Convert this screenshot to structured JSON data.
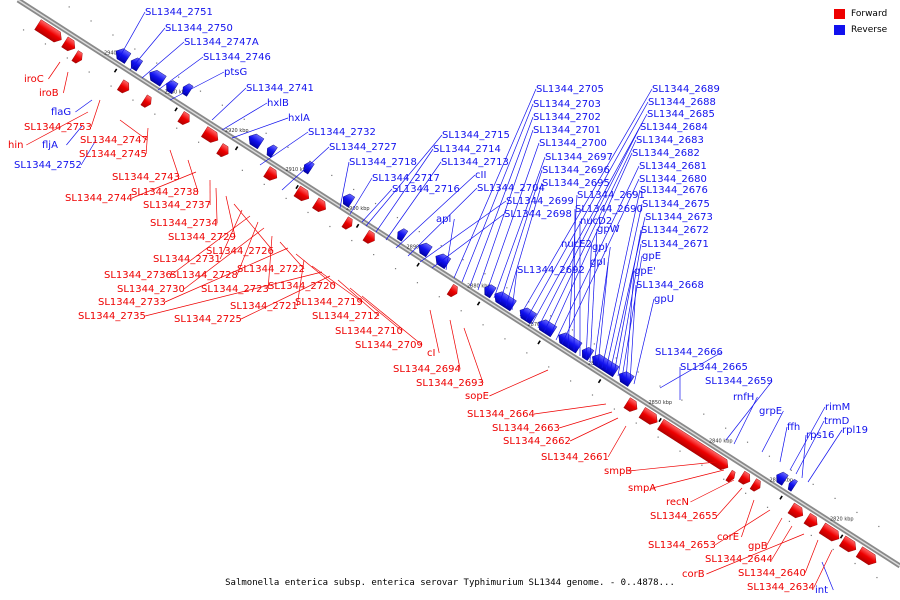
{
  "legend": {
    "forward_label": "Forward",
    "reverse_label": "Reverse",
    "forward_color": "#ee0000",
    "reverse_color": "#1111ee"
  },
  "caption": "Salmonella enterica subsp. enterica serovar Typhimurium SL1344 genome. - 0..4878...",
  "ticks": [
    "2940 kbp",
    "2930 kbp",
    "2920 kbp",
    "2910 kbp",
    "2900 kbp",
    "2890 kbp",
    "2880 kbp",
    "2870 kbp",
    "2860 kbp",
    "2850 kbp",
    "2840 kbp",
    "2830 kbp",
    "2820 kbp"
  ],
  "reverse_labels": [
    "SL1344_2751",
    "SL1344_2750",
    "SL1344_2747A",
    "SL1344_2746",
    "ptsG",
    "SL1344_2741",
    "hxlB",
    "hxlA",
    "SL1344_2732",
    "SL1344_2727",
    "SL1344_2718",
    "SL1344_2717",
    "SL1344_2716",
    "SL1344_2715",
    "SL1344_2714",
    "SL1344_2713",
    "cII",
    "SL1344_2704",
    "SL1344_2699",
    "SL1344_2698",
    "apl",
    "SL1344_2705",
    "SL1344_2703",
    "SL1344_2702",
    "SL1344_2701",
    "SL1344_2700",
    "SL1344_2697",
    "SL1344_2696",
    "SL1344_2695",
    "SL1344_2692",
    "SL1344_2689",
    "SL1344_2688",
    "SL1344_2685",
    "SL1344_2684",
    "SL1344_2683",
    "SL1344_2682",
    "SL1344_2681",
    "SL1344_2680",
    "SL1344_2691",
    "SL1344_2690",
    "nucD2",
    "nucE2",
    "gpW",
    "gpJ",
    "gpI",
    "SL1344_2676",
    "SL1344_2675",
    "SL1344_2673",
    "SL1344_2672",
    "SL1344_2671",
    "gpE",
    "gpE'",
    "SL1344_2668",
    "gpU",
    "SL1344_2666",
    "SL1344_2665",
    "SL1344_2659",
    "rnfH",
    "grpE",
    "ffh",
    "rimM",
    "trmD",
    "rps16",
    "rpl19",
    "flaG",
    "fljA",
    "SL1344_2752",
    "int"
  ],
  "forward_labels": [
    "iroC",
    "iroB",
    "SL1344_2753",
    "hin",
    "SL1344_2747",
    "SL1344_2745",
    "SL1344_2743",
    "SL1344_2738",
    "SL1344_2744",
    "SL1344_2737",
    "SL1344_2734",
    "SL1344_2729",
    "SL1344_2726",
    "SL1344_2731",
    "SL1344_2736",
    "SL1344_2728",
    "SL1344_2730",
    "SL1344_2723",
    "SL1344_2722",
    "SL1344_2733",
    "SL1344_2720",
    "SL1344_2721",
    "SL1344_2719",
    "SL1344_2735",
    "SL1344_2725",
    "SL1344_2712",
    "SL1344_2710",
    "SL1344_2709",
    "cI",
    "SL1344_2694",
    "SL1344_2693",
    "sopE",
    "SL1344_2664",
    "SL1344_2663",
    "SL1344_2662",
    "SL1344_2661",
    "smpB",
    "smpA",
    "recN",
    "SL1344_2655",
    "corE",
    "SL1344_2653",
    "gpB",
    "SL1344_2644",
    "corB",
    "SL1344_2640",
    "SL1344_2634"
  ]
}
